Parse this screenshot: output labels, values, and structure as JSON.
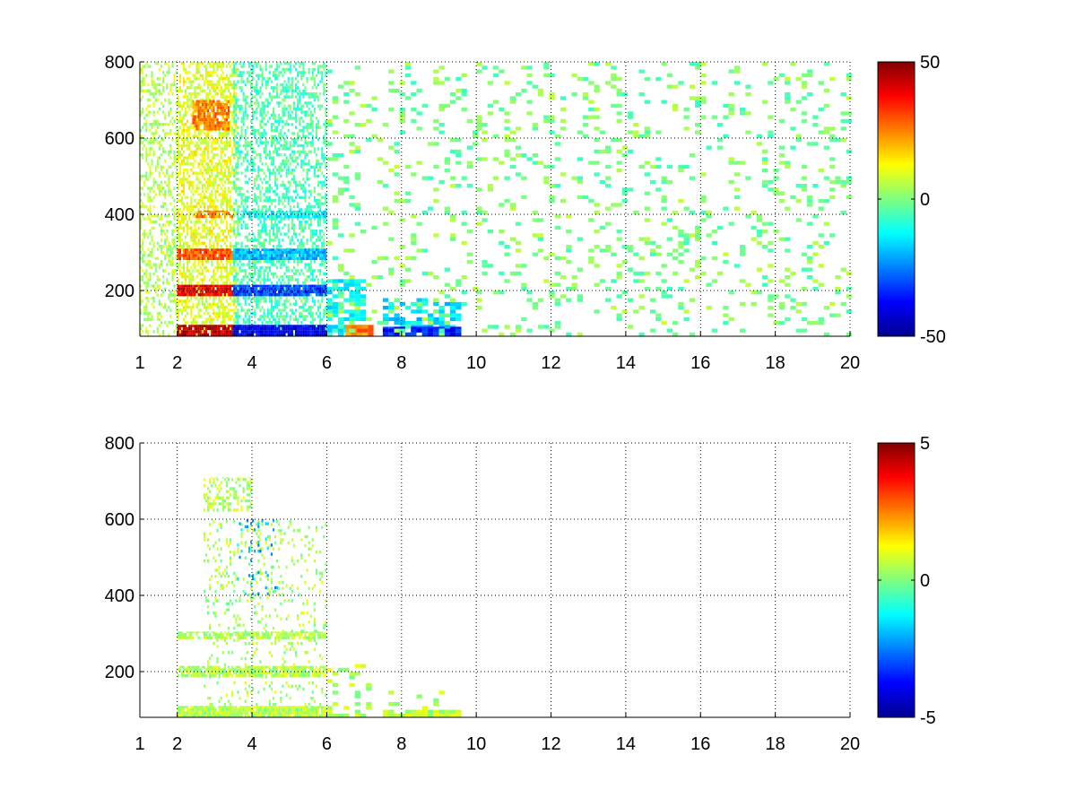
{
  "chart_data": [
    {
      "type": "heatmap",
      "title": "",
      "xlabel": "",
      "ylabel": "",
      "xlim": [
        1,
        20
      ],
      "ylim": [
        80,
        800
      ],
      "x_ticks": [
        1,
        2,
        4,
        6,
        8,
        10,
        12,
        14,
        16,
        18,
        20
      ],
      "x_tick_labels": [
        "1",
        "2",
        "4",
        "6",
        "8",
        "10",
        "12",
        "14",
        "16",
        "18",
        "20"
      ],
      "y_ticks": [
        200,
        400,
        600,
        800
      ],
      "y_tick_labels": [
        "200",
        "400",
        "600",
        "800"
      ],
      "grid": true,
      "colormap": "jet",
      "clim": [
        -50,
        50
      ],
      "colorbar_ticks": [
        -50,
        0,
        50
      ],
      "colorbar_tick_labels": [
        "-50",
        "0",
        "50"
      ],
      "regions": [
        {
          "x": [
            1.0,
            2.0
          ],
          "y": [
            80,
            800
          ],
          "value": 5,
          "density": 0.35
        },
        {
          "x": [
            2.0,
            3.6
          ],
          "y": [
            80,
            800
          ],
          "value": 10,
          "density": 0.55
        },
        {
          "x": [
            2.4,
            3.4
          ],
          "y": [
            620,
            700
          ],
          "value": 25,
          "density": 0.8
        },
        {
          "x": [
            2.0,
            3.6
          ],
          "y": [
            280,
            310
          ],
          "value": 30,
          "density": 0.9
        },
        {
          "x": [
            2.0,
            3.6
          ],
          "y": [
            185,
            215
          ],
          "value": 38,
          "density": 0.9
        },
        {
          "x": [
            2.0,
            3.6
          ],
          "y": [
            80,
            110
          ],
          "value": 45,
          "density": 0.95
        },
        {
          "x": [
            2.5,
            3.5
          ],
          "y": [
            390,
            410
          ],
          "value": 25,
          "density": 0.7
        },
        {
          "x": [
            3.5,
            6.0
          ],
          "y": [
            80,
            800
          ],
          "value": -5,
          "density": 0.45
        },
        {
          "x": [
            3.5,
            6.0
          ],
          "y": [
            280,
            310
          ],
          "value": -20,
          "density": 0.9
        },
        {
          "x": [
            3.5,
            6.0
          ],
          "y": [
            185,
            215
          ],
          "value": -30,
          "density": 0.9
        },
        {
          "x": [
            3.5,
            6.0
          ],
          "y": [
            80,
            110
          ],
          "value": -40,
          "density": 0.95
        },
        {
          "x": [
            3.6,
            6.0
          ],
          "y": [
            390,
            410
          ],
          "value": -12,
          "density": 0.7
        },
        {
          "x": [
            6.0,
            7.0
          ],
          "y": [
            80,
            230
          ],
          "value": -12,
          "density": 0.7
        },
        {
          "x": [
            6.5,
            7.2
          ],
          "y": [
            80,
            110
          ],
          "value": 25,
          "density": 0.8
        },
        {
          "x": [
            7.5,
            9.5
          ],
          "y": [
            80,
            180
          ],
          "value": -15,
          "density": 0.6
        },
        {
          "x": [
            7.5,
            9.5
          ],
          "y": [
            80,
            105
          ],
          "value": -35,
          "density": 0.95
        },
        {
          "x": [
            6.0,
            10.0
          ],
          "y": [
            80,
            800
          ],
          "value": 0,
          "density": 0.12
        },
        {
          "x": [
            10.0,
            20.0
          ],
          "y": [
            80,
            800
          ],
          "value": 0,
          "density": 0.14
        }
      ]
    },
    {
      "type": "heatmap",
      "title": "",
      "xlabel": "",
      "ylabel": "",
      "xlim": [
        1,
        20
      ],
      "ylim": [
        80,
        800
      ],
      "x_ticks": [
        1,
        2,
        4,
        6,
        8,
        10,
        12,
        14,
        16,
        18,
        20
      ],
      "x_tick_labels": [
        "1",
        "2",
        "4",
        "6",
        "8",
        "10",
        "12",
        "14",
        "16",
        "18",
        "20"
      ],
      "y_ticks": [
        200,
        400,
        600,
        800
      ],
      "y_tick_labels": [
        "200",
        "400",
        "600",
        "800"
      ],
      "grid": true,
      "colormap": "jet",
      "clim": [
        -5,
        5
      ],
      "colorbar_ticks": [
        -5,
        0,
        5
      ],
      "colorbar_tick_labels": [
        "-5",
        "0",
        "5"
      ],
      "regions": [
        {
          "x": [
            2.0,
            6.0
          ],
          "y": [
            80,
            110
          ],
          "value": 0.5,
          "density": 0.95
        },
        {
          "x": [
            2.0,
            6.0
          ],
          "y": [
            185,
            215
          ],
          "value": 0.5,
          "density": 0.85
        },
        {
          "x": [
            2.0,
            6.0
          ],
          "y": [
            285,
            305
          ],
          "value": 0.5,
          "density": 0.7
        },
        {
          "x": [
            2.7,
            4.0
          ],
          "y": [
            620,
            710
          ],
          "value": 0.5,
          "density": 0.4
        },
        {
          "x": [
            2.7,
            6.0
          ],
          "y": [
            110,
            600
          ],
          "value": 0.4,
          "density": 0.12
        },
        {
          "x": [
            3.6,
            4.7
          ],
          "y": [
            400,
            600
          ],
          "value": -2.0,
          "density": 0.1
        },
        {
          "x": [
            6.0,
            7.2
          ],
          "y": [
            80,
            220
          ],
          "value": 0.5,
          "density": 0.3
        },
        {
          "x": [
            7.5,
            9.5
          ],
          "y": [
            80,
            100
          ],
          "value": 0.5,
          "density": 0.85
        },
        {
          "x": [
            7.5,
            9.5
          ],
          "y": [
            100,
            160
          ],
          "value": 0.5,
          "density": 0.15
        }
      ]
    }
  ]
}
